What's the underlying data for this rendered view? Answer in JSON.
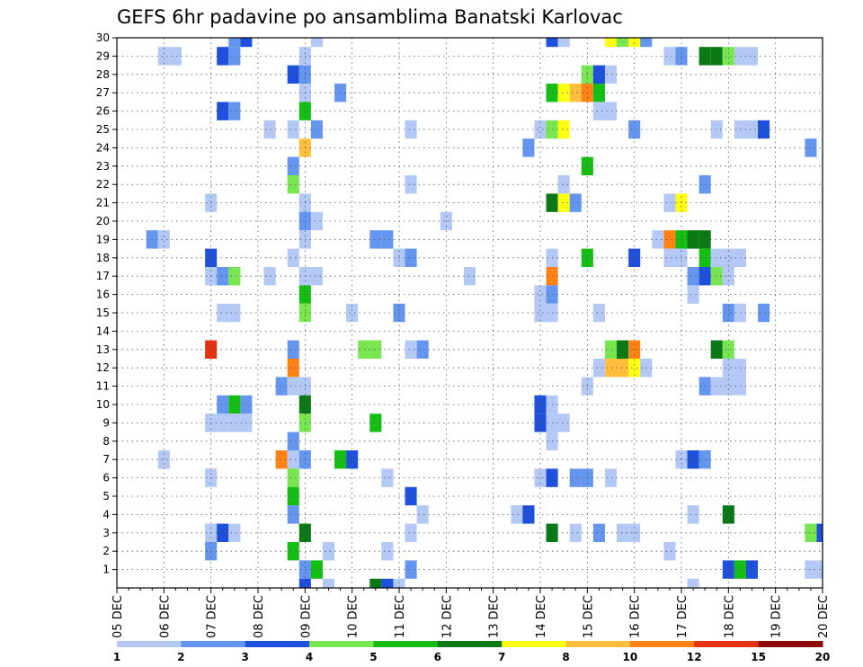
{
  "chart_data": {
    "type": "heatmap",
    "title": "GEFS 6hr padavine po ansamblima Banatski Karlovac",
    "x_tick_labels": [
      "05 DEC",
      "06 DEC",
      "07 DEC",
      "08 DEC",
      "09 DEC",
      "10 DEC",
      "11 DEC",
      "12 DEC",
      "13 DEC",
      "14 DEC",
      "15 DEC",
      "16 DEC",
      "17 DEC",
      "18 DEC",
      "19 DEC",
      "20 DEC"
    ],
    "y_tick_labels": [
      "1",
      "2",
      "3",
      "4",
      "5",
      "6",
      "7",
      "8",
      "9",
      "10",
      "11",
      "12",
      "13",
      "14",
      "15",
      "16",
      "17",
      "18",
      "19",
      "20",
      "21",
      "22",
      "23",
      "24",
      "25",
      "26",
      "27",
      "28",
      "29",
      "30"
    ],
    "x_range_steps": [
      0,
      60
    ],
    "x_step_hours": 6,
    "y_range": [
      0,
      30
    ],
    "grid": true,
    "colorbar": {
      "labels": [
        "1",
        "2",
        "3",
        "4",
        "5",
        "6",
        "7",
        "8",
        "10",
        "12",
        "15",
        "20"
      ],
      "colors": [
        "#b4c8f5",
        "#6496f0",
        "#1e50dc",
        "#78e650",
        "#14be14",
        "#0a7814",
        "#ffff14",
        "#ffbe3c",
        "#ff8214",
        "#e63214",
        "#8c0a0a"
      ]
    },
    "cells": [
      [
        10,
        30,
        1
      ],
      [
        11,
        30,
        2
      ],
      [
        17,
        30,
        0
      ],
      [
        37,
        30,
        2
      ],
      [
        38,
        30,
        0
      ],
      [
        42,
        30,
        6
      ],
      [
        43,
        30,
        3
      ],
      [
        44,
        30,
        6
      ],
      [
        45,
        30,
        1
      ],
      [
        4,
        29,
        0
      ],
      [
        5,
        29,
        0
      ],
      [
        9,
        29,
        2
      ],
      [
        10,
        29,
        1
      ],
      [
        16,
        29,
        0
      ],
      [
        47,
        29,
        0
      ],
      [
        48,
        29,
        1
      ],
      [
        50,
        29,
        5
      ],
      [
        51,
        29,
        5
      ],
      [
        52,
        29,
        3
      ],
      [
        53,
        29,
        0
      ],
      [
        54,
        29,
        0
      ],
      [
        15,
        28,
        2
      ],
      [
        16,
        28,
        1
      ],
      [
        40,
        28,
        3
      ],
      [
        41,
        28,
        2
      ],
      [
        42,
        28,
        0
      ],
      [
        16,
        27,
        0
      ],
      [
        19,
        27,
        1
      ],
      [
        37,
        27,
        4
      ],
      [
        38,
        27,
        6
      ],
      [
        39,
        27,
        7
      ],
      [
        40,
        27,
        8
      ],
      [
        41,
        27,
        4
      ],
      [
        9,
        26,
        2
      ],
      [
        10,
        26,
        1
      ],
      [
        16,
        26,
        4
      ],
      [
        41,
        26,
        0
      ],
      [
        42,
        26,
        0
      ],
      [
        13,
        25,
        0
      ],
      [
        15,
        25,
        0
      ],
      [
        17,
        25,
        1
      ],
      [
        25,
        25,
        0
      ],
      [
        36,
        25,
        0
      ],
      [
        37,
        25,
        3
      ],
      [
        38,
        25,
        6
      ],
      [
        44,
        25,
        1
      ],
      [
        51,
        25,
        0
      ],
      [
        53,
        25,
        0
      ],
      [
        54,
        25,
        0
      ],
      [
        55,
        25,
        2
      ],
      [
        16,
        24,
        7
      ],
      [
        35,
        24,
        1
      ],
      [
        59,
        24,
        1
      ],
      [
        15,
        23,
        1
      ],
      [
        40,
        23,
        4
      ],
      [
        15,
        22,
        3
      ],
      [
        25,
        22,
        0
      ],
      [
        38,
        22,
        0
      ],
      [
        50,
        22,
        1
      ],
      [
        8,
        21,
        0
      ],
      [
        16,
        21,
        0
      ],
      [
        37,
        21,
        5
      ],
      [
        38,
        21,
        6
      ],
      [
        39,
        21,
        1
      ],
      [
        47,
        21,
        0
      ],
      [
        48,
        21,
        6
      ],
      [
        16,
        20,
        1
      ],
      [
        17,
        20,
        0
      ],
      [
        28,
        20,
        0
      ],
      [
        3,
        19,
        1
      ],
      [
        4,
        19,
        0
      ],
      [
        16,
        19,
        0
      ],
      [
        22,
        19,
        1
      ],
      [
        23,
        19,
        1
      ],
      [
        46,
        19,
        0
      ],
      [
        47,
        19,
        8
      ],
      [
        48,
        19,
        4
      ],
      [
        49,
        19,
        5
      ],
      [
        50,
        19,
        5
      ],
      [
        8,
        18,
        2
      ],
      [
        15,
        18,
        0
      ],
      [
        24,
        18,
        0
      ],
      [
        25,
        18,
        1
      ],
      [
        37,
        18,
        0
      ],
      [
        40,
        18,
        4
      ],
      [
        44,
        18,
        2
      ],
      [
        47,
        18,
        0
      ],
      [
        48,
        18,
        0
      ],
      [
        50,
        18,
        4
      ],
      [
        51,
        18,
        0
      ],
      [
        52,
        18,
        0
      ],
      [
        53,
        18,
        0
      ],
      [
        8,
        17,
        0
      ],
      [
        9,
        17,
        1
      ],
      [
        10,
        17,
        3
      ],
      [
        13,
        17,
        0
      ],
      [
        16,
        17,
        0
      ],
      [
        17,
        17,
        0
      ],
      [
        30,
        17,
        0
      ],
      [
        37,
        17,
        8
      ],
      [
        49,
        17,
        1
      ],
      [
        50,
        17,
        2
      ],
      [
        51,
        17,
        3
      ],
      [
        52,
        17,
        0
      ],
      [
        16,
        16,
        4
      ],
      [
        36,
        16,
        0
      ],
      [
        37,
        16,
        1
      ],
      [
        49,
        16,
        0
      ],
      [
        9,
        15,
        0
      ],
      [
        10,
        15,
        0
      ],
      [
        16,
        15,
        3
      ],
      [
        20,
        15,
        0
      ],
      [
        24,
        15,
        1
      ],
      [
        36,
        15,
        0
      ],
      [
        37,
        15,
        0
      ],
      [
        41,
        15,
        0
      ],
      [
        52,
        15,
        1
      ],
      [
        53,
        15,
        0
      ],
      [
        55,
        15,
        1
      ],
      [
        8,
        13,
        9
      ],
      [
        15,
        13,
        1
      ],
      [
        21,
        13,
        3
      ],
      [
        22,
        13,
        3
      ],
      [
        25,
        13,
        0
      ],
      [
        26,
        13,
        1
      ],
      [
        42,
        13,
        3
      ],
      [
        43,
        13,
        5
      ],
      [
        44,
        13,
        8
      ],
      [
        51,
        13,
        5
      ],
      [
        52,
        13,
        3
      ],
      [
        15,
        12,
        8
      ],
      [
        41,
        12,
        0
      ],
      [
        42,
        12,
        7
      ],
      [
        43,
        12,
        7
      ],
      [
        44,
        12,
        6
      ],
      [
        45,
        12,
        0
      ],
      [
        52,
        12,
        0
      ],
      [
        53,
        12,
        0
      ],
      [
        14,
        11,
        1
      ],
      [
        15,
        11,
        0
      ],
      [
        16,
        11,
        0
      ],
      [
        40,
        11,
        0
      ],
      [
        50,
        11,
        1
      ],
      [
        51,
        11,
        0
      ],
      [
        52,
        11,
        0
      ],
      [
        53,
        11,
        0
      ],
      [
        9,
        10,
        1
      ],
      [
        10,
        10,
        4
      ],
      [
        11,
        10,
        1
      ],
      [
        16,
        10,
        5
      ],
      [
        36,
        10,
        2
      ],
      [
        37,
        10,
        0
      ],
      [
        8,
        9,
        0
      ],
      [
        9,
        9,
        0
      ],
      [
        10,
        9,
        0
      ],
      [
        11,
        9,
        0
      ],
      [
        16,
        9,
        3
      ],
      [
        22,
        9,
        4
      ],
      [
        36,
        9,
        2
      ],
      [
        37,
        9,
        0
      ],
      [
        38,
        9,
        0
      ],
      [
        15,
        8,
        1
      ],
      [
        37,
        8,
        0
      ],
      [
        4,
        7,
        0
      ],
      [
        14,
        7,
        8
      ],
      [
        15,
        7,
        0
      ],
      [
        16,
        7,
        1
      ],
      [
        19,
        7,
        4
      ],
      [
        20,
        7,
        2
      ],
      [
        48,
        7,
        0
      ],
      [
        49,
        7,
        2
      ],
      [
        50,
        7,
        1
      ],
      [
        8,
        6,
        0
      ],
      [
        15,
        6,
        3
      ],
      [
        23,
        6,
        0
      ],
      [
        36,
        6,
        0
      ],
      [
        37,
        6,
        2
      ],
      [
        39,
        6,
        1
      ],
      [
        40,
        6,
        1
      ],
      [
        42,
        6,
        0
      ],
      [
        15,
        5,
        4
      ],
      [
        25,
        5,
        2
      ],
      [
        15,
        4,
        1
      ],
      [
        26,
        4,
        0
      ],
      [
        34,
        4,
        0
      ],
      [
        35,
        4,
        2
      ],
      [
        49,
        4,
        0
      ],
      [
        52,
        4,
        5
      ],
      [
        8,
        3,
        0
      ],
      [
        9,
        3,
        2
      ],
      [
        10,
        3,
        0
      ],
      [
        16,
        3,
        5
      ],
      [
        25,
        3,
        0
      ],
      [
        37,
        3,
        5
      ],
      [
        39,
        3,
        0
      ],
      [
        41,
        3,
        1
      ],
      [
        43,
        3,
        0
      ],
      [
        44,
        3,
        0
      ],
      [
        59,
        3,
        3
      ],
      [
        60,
        3,
        2
      ],
      [
        8,
        2,
        1
      ],
      [
        15,
        2,
        4
      ],
      [
        18,
        2,
        0
      ],
      [
        23,
        2,
        0
      ],
      [
        47,
        2,
        0
      ],
      [
        16,
        1,
        1
      ],
      [
        17,
        1,
        4
      ],
      [
        25,
        1,
        1
      ],
      [
        52,
        1,
        2
      ],
      [
        53,
        1,
        4
      ],
      [
        54,
        1,
        2
      ],
      [
        59,
        1,
        0
      ],
      [
        60,
        1,
        0
      ],
      [
        16,
        0,
        2
      ],
      [
        18,
        0,
        0
      ],
      [
        22,
        0,
        5
      ],
      [
        23,
        0,
        2
      ],
      [
        24,
        0,
        0
      ],
      [
        49,
        0,
        0
      ]
    ]
  }
}
